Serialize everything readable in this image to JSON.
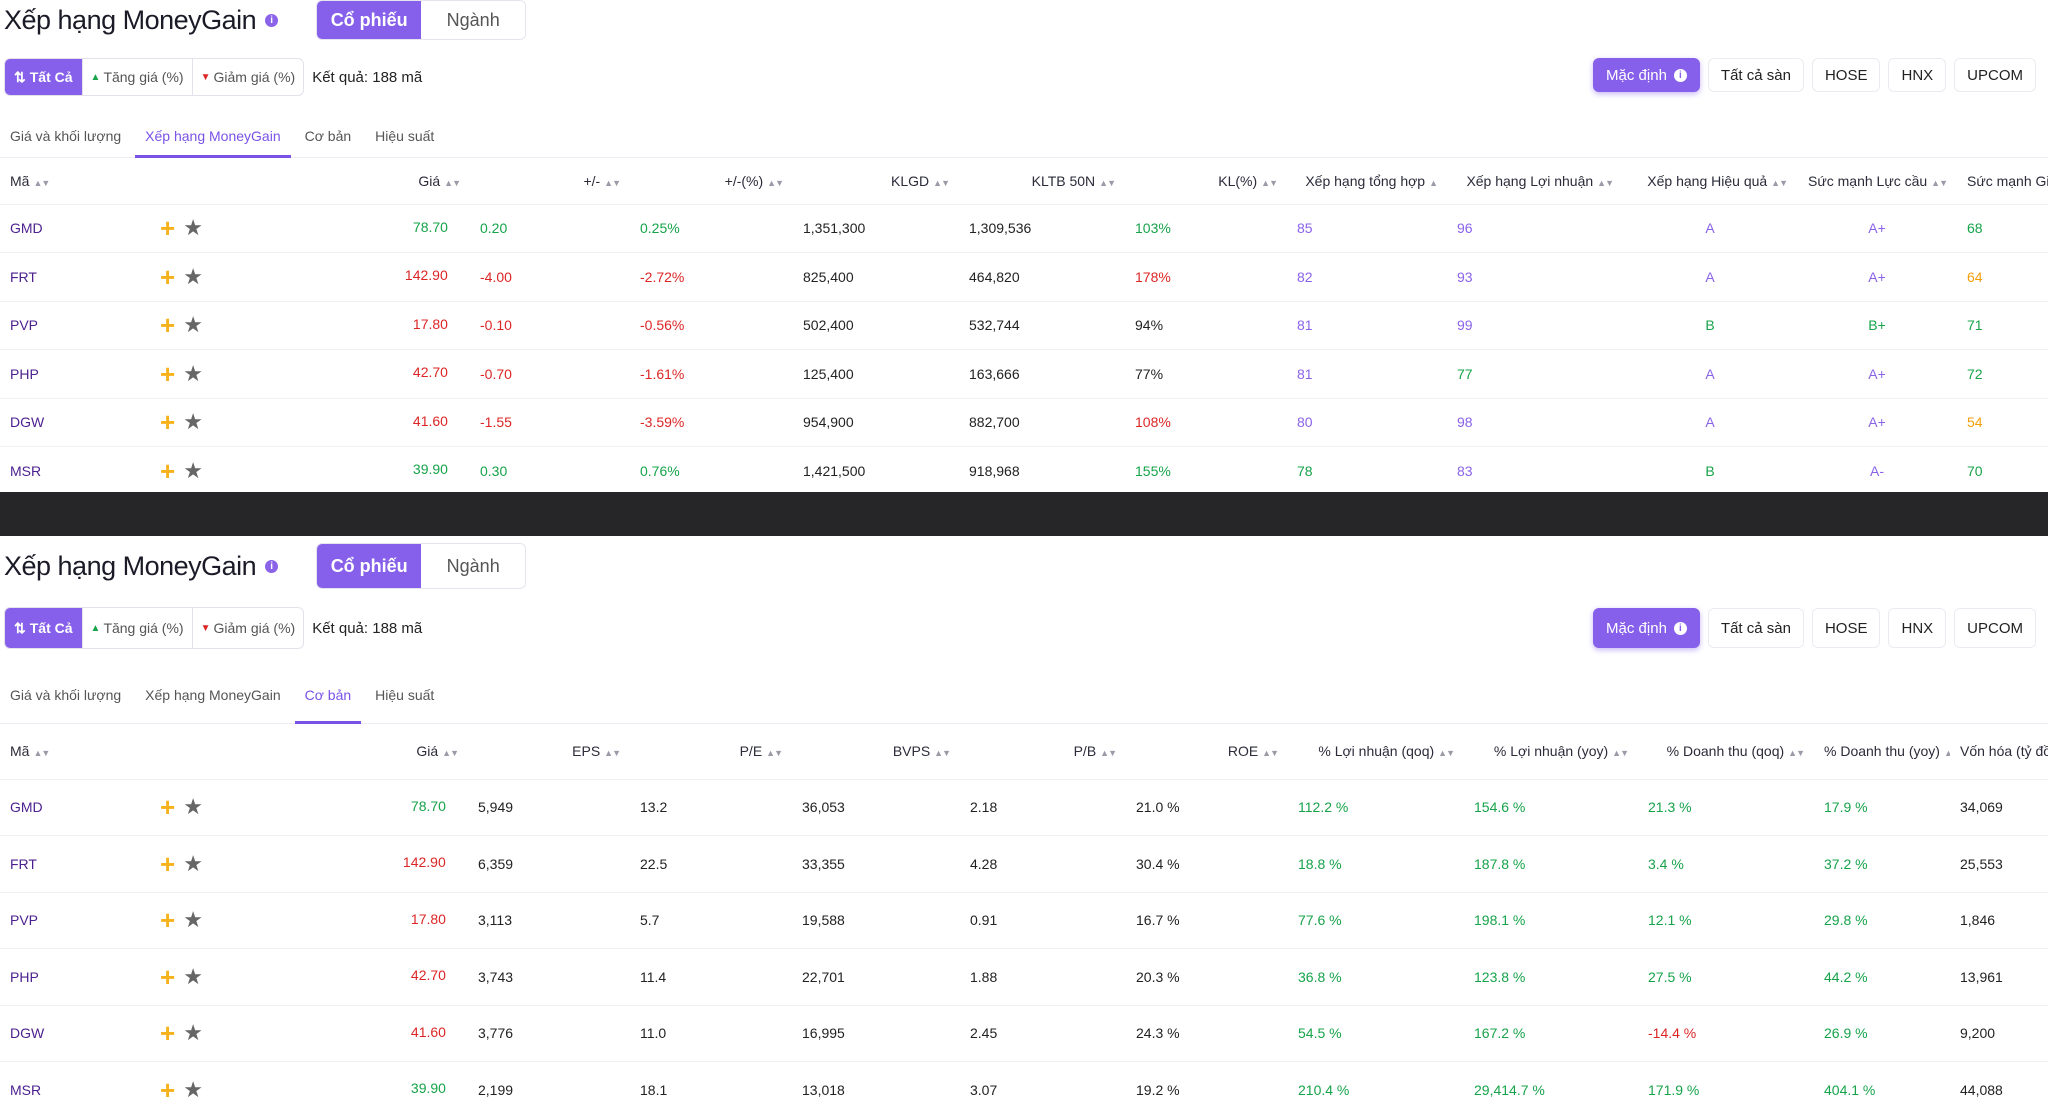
{
  "panels": [
    {
      "title": "Xếp hạng MoneyGain",
      "seg_stock": "Cổ phiếu",
      "seg_industry": "Ngành",
      "filter_all": "Tất Cả",
      "filter_up": "Tăng giá (%)",
      "filter_down": "Giảm giá (%)",
      "result": "Kết quả: 188 mã",
      "exchanges": [
        "Mặc định",
        "Tất cả sàn",
        "HOSE",
        "HNX",
        "UPCOM"
      ],
      "tabs": [
        "Giá và khối lượng",
        "Xếp hạng MoneyGain",
        "Cơ bản",
        "Hiệu suất"
      ],
      "active_tab": "Xếp hạng MoneyGain",
      "columns": [
        "Mã",
        "Giá",
        "+/-",
        "+/-(%)",
        "KLGD",
        "KLTB 50N",
        "KL(%)",
        "Xếp hạng tổng hợp",
        "Xếp hạng Lợi nhuận",
        "Xếp hạng Hiệu quả",
        "Sức mạnh Lực cầu",
        "Sức mạnh Giá"
      ],
      "rows": [
        [
          "GMD",
          "78.70",
          "0.20",
          "0.25%",
          "1,351,300",
          "1,309,536",
          "103%",
          "85",
          "96",
          "A",
          "A+",
          "68"
        ],
        [
          "FRT",
          "142.90",
          "-4.00",
          "-2.72%",
          "825,400",
          "464,820",
          "178%",
          "82",
          "93",
          "A",
          "A+",
          "64"
        ],
        [
          "PVP",
          "17.80",
          "-0.10",
          "-0.56%",
          "502,400",
          "532,744",
          "94%",
          "81",
          "99",
          "B",
          "B+",
          "71"
        ],
        [
          "PHP",
          "42.70",
          "-0.70",
          "-1.61%",
          "125,400",
          "163,666",
          "77%",
          "81",
          "77",
          "A",
          "A+",
          "72"
        ],
        [
          "DGW",
          "41.60",
          "-1.55",
          "-3.59%",
          "954,900",
          "882,700",
          "108%",
          "80",
          "98",
          "A",
          "A+",
          "54"
        ],
        [
          "MSR",
          "39.90",
          "0.30",
          "0.76%",
          "1,421,500",
          "918,968",
          "155%",
          "78",
          "83",
          "B",
          "A-",
          "70"
        ]
      ]
    },
    {
      "title": "Xếp hạng MoneyGain",
      "seg_stock": "Cổ phiếu",
      "seg_industry": "Ngành",
      "filter_all": "Tất Cả",
      "filter_up": "Tăng giá (%)",
      "filter_down": "Giảm giá (%)",
      "result": "Kết quả: 188 mã",
      "exchanges": [
        "Mặc định",
        "Tất cả sàn",
        "HOSE",
        "HNX",
        "UPCOM"
      ],
      "tabs": [
        "Giá và khối lượng",
        "Xếp hạng MoneyGain",
        "Cơ bản",
        "Hiệu suất"
      ],
      "active_tab": "Cơ bản",
      "columns": [
        "Mã",
        "Giá",
        "EPS",
        "P/E",
        "BVPS",
        "P/B",
        "ROE",
        "% Lợi nhuận (qoq)",
        "% Lợi nhuận (yoy)",
        "% Doanh thu (qoq)",
        "% Doanh thu (yoy)",
        "Vốn hóa (tỷ đồng)"
      ],
      "rows": [
        [
          "GMD",
          "78.70",
          "5,949",
          "13.2",
          "36,053",
          "2.18",
          "21.0 %",
          "112.2 %",
          "154.6 %",
          "21.3 %",
          "17.9 %",
          "34,069"
        ],
        [
          "FRT",
          "142.90",
          "6,359",
          "22.5",
          "33,355",
          "4.28",
          "30.4 %",
          "18.8 %",
          "187.8 %",
          "3.4 %",
          "37.2 %",
          "25,553"
        ],
        [
          "PVP",
          "17.80",
          "3,113",
          "5.7",
          "19,588",
          "0.91",
          "16.7 %",
          "77.6 %",
          "198.1 %",
          "12.1 %",
          "29.8 %",
          "1,846"
        ],
        [
          "PHP",
          "42.70",
          "3,743",
          "11.4",
          "22,701",
          "1.88",
          "20.3 %",
          "36.8 %",
          "123.8 %",
          "27.5 %",
          "44.2 %",
          "13,961"
        ],
        [
          "DGW",
          "41.60",
          "3,776",
          "11.0",
          "16,995",
          "2.45",
          "24.3 %",
          "54.5 %",
          "167.2 %",
          "-14.4 %",
          "26.9 %",
          "9,200"
        ],
        [
          "MSR",
          "39.90",
          "2,199",
          "18.1",
          "13,018",
          "3.07",
          "19.2 %",
          "210.4 %",
          "29,414.7 %",
          "171.9 %",
          "404.1 %",
          "44,088"
        ]
      ]
    }
  ],
  "colors": {
    "accent": "#8660ea",
    "up": "#16a34a",
    "down": "#dc2626",
    "purple": "#8a63e8",
    "orange": "#f59e0b",
    "separator": "#262629"
  },
  "icons": {
    "add_watchlist": "plus-icon",
    "favorite": "star-icon",
    "sort": "sort-icon",
    "info": "info-icon"
  }
}
